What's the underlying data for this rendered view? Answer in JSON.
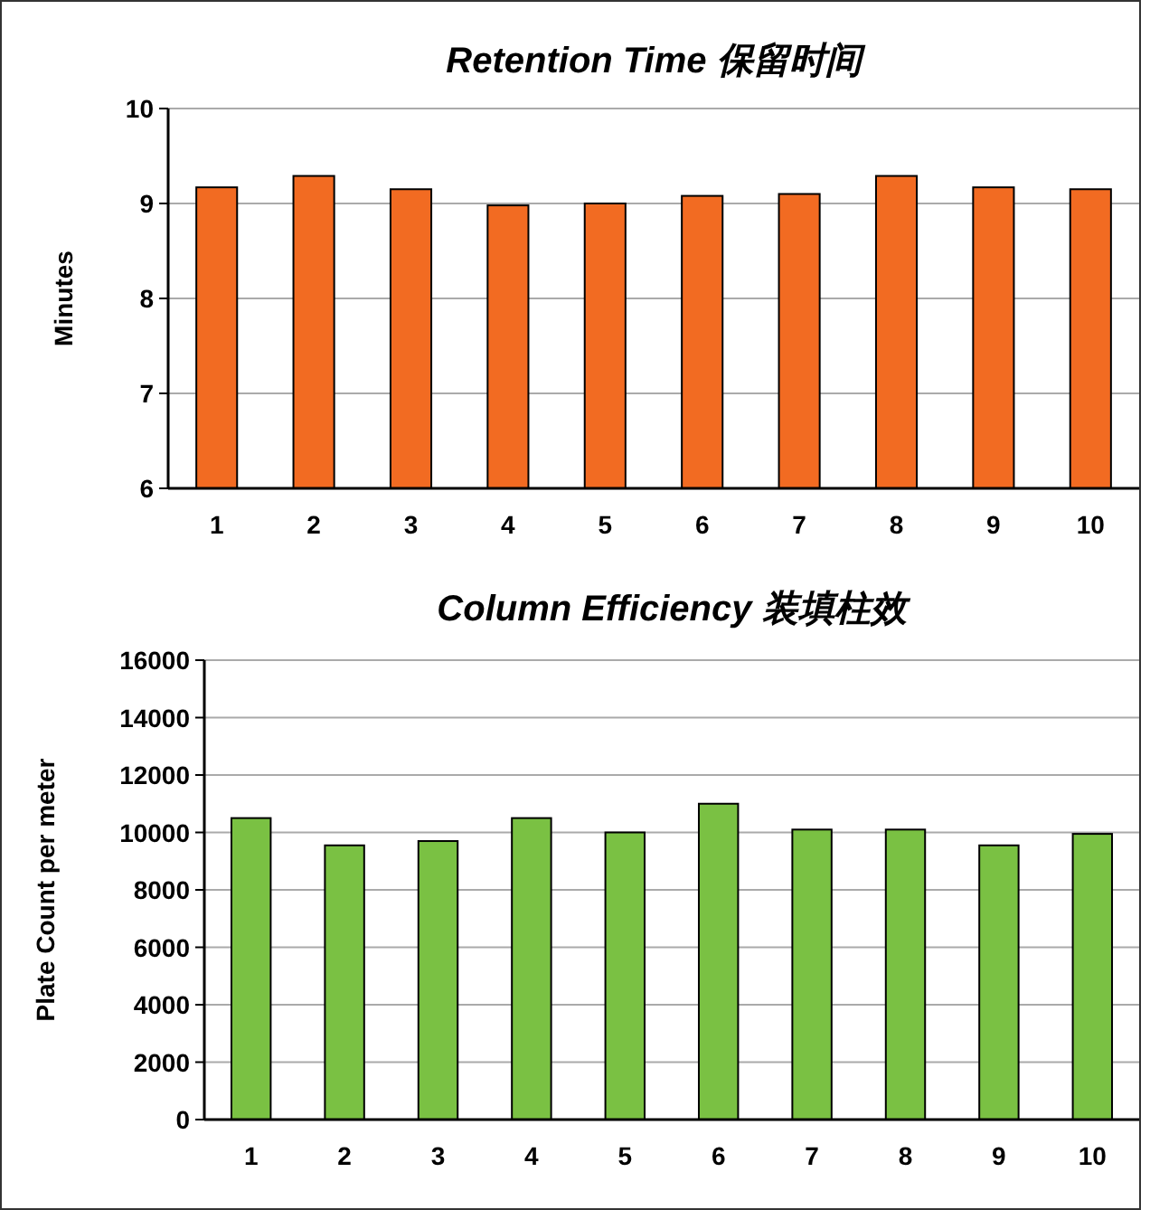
{
  "chart_data": [
    {
      "type": "bar",
      "title": "Retention Time  保留时间",
      "ylabel": "Minutes",
      "categories": [
        "1",
        "2",
        "3",
        "4",
        "5",
        "6",
        "7",
        "8",
        "9",
        "10"
      ],
      "values": [
        9.17,
        9.29,
        9.15,
        8.98,
        9.0,
        9.08,
        9.1,
        9.29,
        9.17,
        9.15
      ],
      "color": "#f26b22",
      "ylim": [
        6,
        10
      ],
      "yticks": [
        6,
        7,
        8,
        9,
        10
      ],
      "grid": "y"
    },
    {
      "type": "bar",
      "title": "Column Efficiency  装填柱效",
      "ylabel": "Plate Count per meter",
      "categories": [
        "1",
        "2",
        "3",
        "4",
        "5",
        "6",
        "7",
        "8",
        "9",
        "10"
      ],
      "values": [
        10500,
        9550,
        9700,
        10500,
        10000,
        11000,
        10100,
        10100,
        9550,
        9950
      ],
      "color": "#7ac143",
      "ylim": [
        0,
        16000
      ],
      "yticks": [
        0,
        2000,
        4000,
        6000,
        8000,
        10000,
        12000,
        14000,
        16000
      ],
      "grid": "y"
    }
  ]
}
